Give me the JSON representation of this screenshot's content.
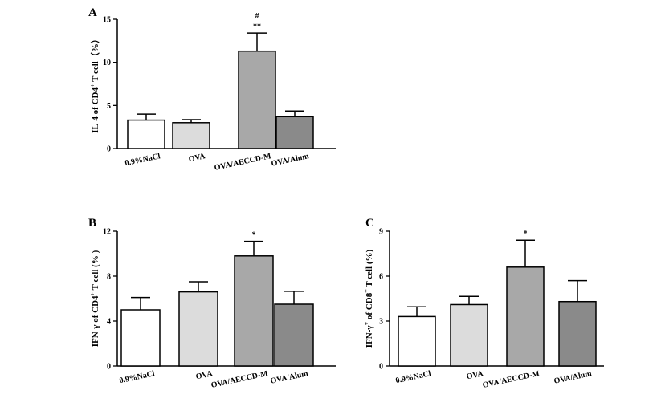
{
  "chart_data": [
    {
      "type": "bar",
      "panel": "A",
      "ylabel": "IL-4 of CD4+ T cell（%）",
      "ylabel_parts": [
        "IL-4 of CD4",
        "+",
        " T cell（%）"
      ],
      "categories": [
        "0.9%NaCl",
        "OVA",
        "OVA/AECCD-M",
        "OVA/Alum"
      ],
      "values": [
        3.3,
        3.0,
        11.3,
        3.7
      ],
      "errors": [
        0.7,
        0.35,
        2.1,
        0.65
      ],
      "colors": [
        "#ffffff",
        "#dcdcdc",
        "#a8a8a8",
        "#8a8a8a"
      ],
      "annotations": [
        "",
        "",
        "#\n**",
        ""
      ],
      "yticks": [
        0,
        5,
        10,
        15
      ],
      "ylim": [
        0,
        15
      ]
    },
    {
      "type": "bar",
      "panel": "B",
      "ylabel": "IFN-γ of CD4+ T cell (%)",
      "ylabel_parts": [
        "IFN-γ of CD4",
        "+",
        " T cell (% )"
      ],
      "categories": [
        "0.9%NaCl",
        "OVA",
        "OVA/AECCD-M",
        "OVA/Alum"
      ],
      "values": [
        5.0,
        6.6,
        9.8,
        5.5
      ],
      "errors": [
        1.1,
        0.9,
        1.3,
        1.15
      ],
      "colors": [
        "#ffffff",
        "#dcdcdc",
        "#a8a8a8",
        "#8a8a8a"
      ],
      "annotations": [
        "",
        "",
        "*",
        ""
      ],
      "yticks": [
        0,
        4,
        8,
        12
      ],
      "ylim": [
        0,
        12
      ]
    },
    {
      "type": "bar",
      "panel": "C",
      "ylabel": "IFN-γ+ of CD8+ T cell (%)",
      "ylabel_parts": [
        "IFN-γ",
        "+",
        " of CD8",
        "+",
        " T cell (%)"
      ],
      "categories": [
        "0.9%NaCl",
        "OVA",
        "OVA/AECCD-M",
        "OVA/Alum"
      ],
      "values": [
        3.3,
        4.1,
        6.6,
        4.3
      ],
      "errors": [
        0.65,
        0.55,
        1.8,
        1.4
      ],
      "colors": [
        "#ffffff",
        "#dcdcdc",
        "#a8a8a8",
        "#8a8a8a"
      ],
      "annotations": [
        "",
        "",
        "*",
        ""
      ],
      "yticks": [
        0,
        3,
        6,
        9
      ],
      "ylim": [
        0,
        9
      ]
    }
  ]
}
